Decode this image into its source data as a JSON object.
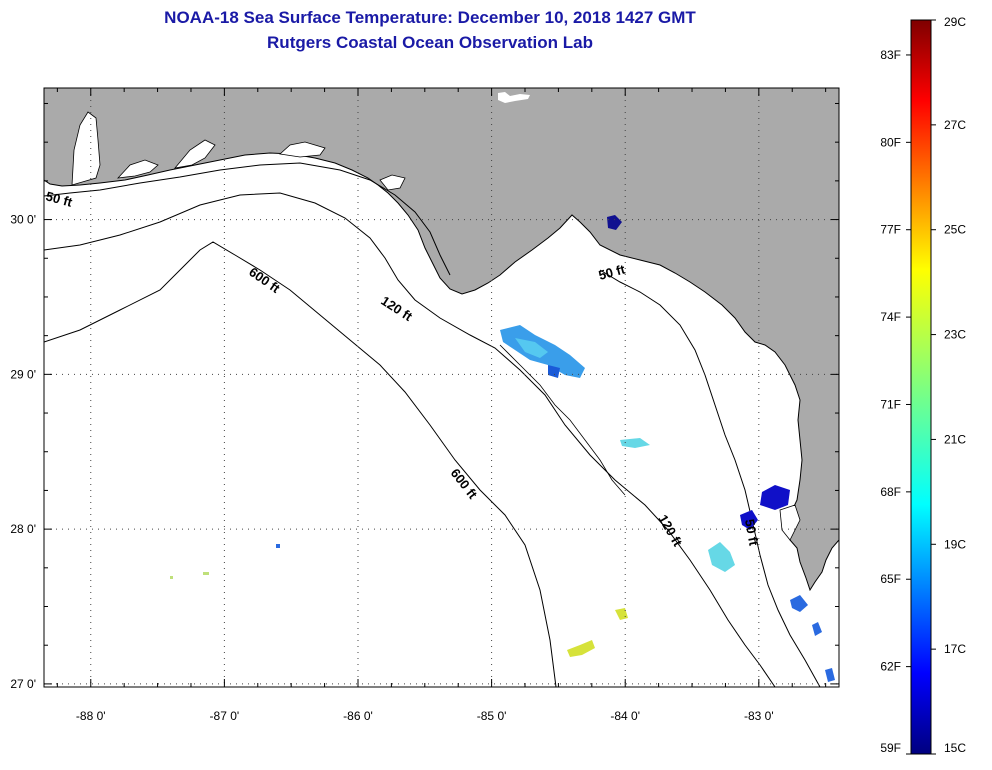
{
  "header": {
    "title_line1": "NOAA-18 Sea Surface Temperature:  December 10, 2018 1427 GMT",
    "title_line2": "Rutgers Coastal Ocean Observation Lab"
  },
  "map": {
    "lon_range": [
      -88.35,
      -82.4
    ],
    "lat_range": [
      26.98,
      30.85
    ],
    "lon_ticks": [
      {
        "value": -88,
        "label": "-88 0'"
      },
      {
        "value": -87,
        "label": "-87 0'"
      },
      {
        "value": -86,
        "label": "-86 0'"
      },
      {
        "value": -85,
        "label": "-85 0'"
      },
      {
        "value": -84,
        "label": "-84 0'"
      },
      {
        "value": -83,
        "label": "-83 0'"
      }
    ],
    "lat_ticks": [
      {
        "value": 30,
        "label": "30 0'"
      },
      {
        "value": 29,
        "label": "29 0'"
      },
      {
        "value": 28,
        "label": "28 0'"
      },
      {
        "value": 27,
        "label": "27 0'"
      }
    ],
    "depth_labels": [
      {
        "text": "50 ft"
      },
      {
        "text": "600 ft"
      },
      {
        "text": "120 ft"
      },
      {
        "text": "50 ft"
      },
      {
        "text": "600 ft"
      },
      {
        "text": "120 ft"
      },
      {
        "text": "50 ft"
      }
    ],
    "colors": {
      "land": "#aaaaaa",
      "water": "#ffffff",
      "contour": "#000000",
      "grid": "#444444"
    }
  },
  "colorbar": {
    "temp_c_range": [
      15,
      29
    ],
    "fahrenheit_labels": [
      "83F",
      "80F",
      "77F",
      "74F",
      "71F",
      "68F",
      "65F",
      "62F",
      "59F"
    ],
    "celsius_labels": [
      "29C",
      "27C",
      "25C",
      "23C",
      "21C",
      "19C",
      "17C",
      "15C"
    ]
  }
}
